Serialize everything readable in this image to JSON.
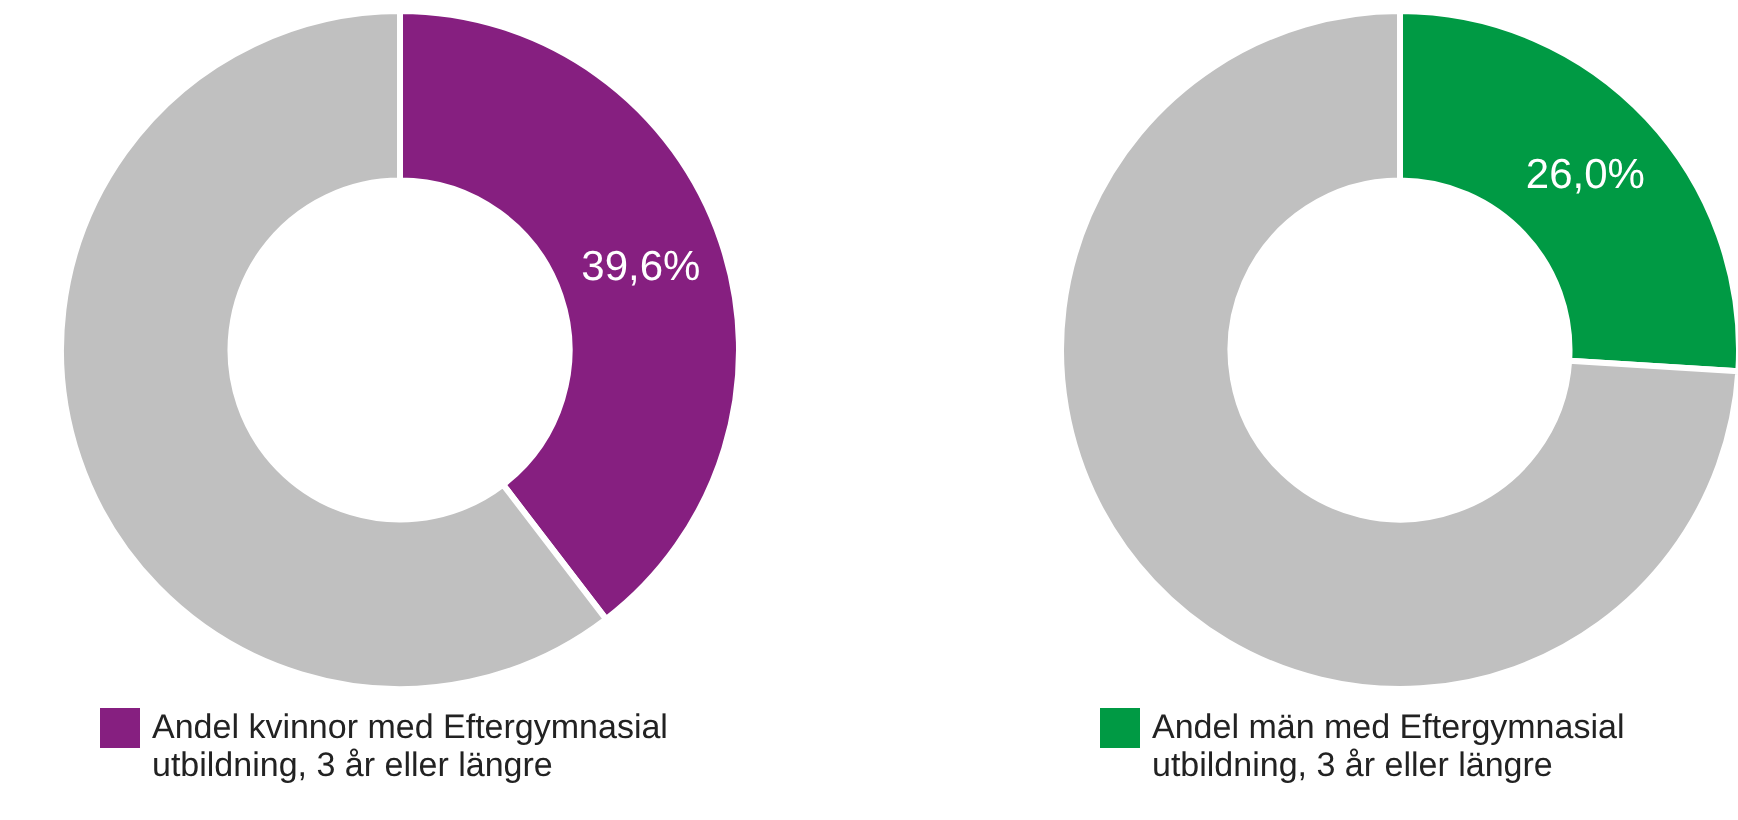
{
  "chart_data": [
    {
      "type": "donut",
      "categories": [
        "Andel kvinnor med Eftergymnasial utbildning, 3 år eller längre",
        null
      ],
      "values": [
        39.6,
        60.4
      ],
      "colors": [
        "#861f80",
        "#c0c0c0"
      ],
      "value_labels": [
        "39,6%",
        null
      ],
      "legend": "bottom"
    },
    {
      "type": "donut",
      "categories": [
        "Andel män med Eftergymnasial utbildning, 3 år eller längre",
        null
      ],
      "values": [
        26.0,
        74.0
      ],
      "colors": [
        "#009a44",
        "#c0c0c0"
      ],
      "value_labels": [
        "26,0%",
        null
      ],
      "legend": "bottom"
    }
  ]
}
